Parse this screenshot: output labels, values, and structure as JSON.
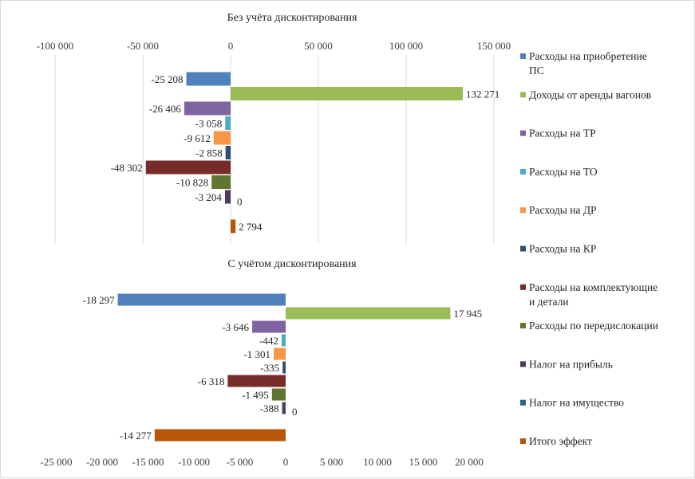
{
  "chart_data": [
    {
      "type": "bar",
      "orientation": "horizontal",
      "title": "Без учёта дисконтирования",
      "xlim": [
        -100000,
        150000
      ],
      "xticks": [
        -100000,
        -50000,
        0,
        50000,
        100000,
        150000
      ],
      "xtick_labels": [
        "-100 000",
        "-50 000",
        "0",
        "50 000",
        "100 000",
        "150 000"
      ],
      "axis_position": "top",
      "grid": true,
      "categories": [
        "Расходы на приобретение ПС",
        "Доходы от аренды вагонов",
        "Расходы на ТР",
        "Расходы на ТО",
        "Расходы на ДР",
        "Расходы на КР",
        "Расходы на комплектующие и детали",
        "Расходы по передислокации",
        "Налог на прибыль",
        "Налог на имущество",
        "Итого эффект"
      ],
      "values": [
        -25208,
        132271,
        -26406,
        -3058,
        -9612,
        -2858,
        -48302,
        -10828,
        -3204,
        0,
        2794
      ],
      "value_labels": [
        "-25 208",
        "132 271",
        "-26 406",
        "-3 058",
        "-9 612",
        "-2 858",
        "-48 302",
        "-10 828",
        "-3 204",
        "0",
        "2 794"
      ]
    },
    {
      "type": "bar",
      "orientation": "horizontal",
      "title": "С учётом дисконтирования",
      "xlim": [
        -25000,
        20000
      ],
      "xticks": [
        -25000,
        -20000,
        -15000,
        -10000,
        -5000,
        0,
        5000,
        10000,
        15000,
        20000
      ],
      "xtick_labels": [
        "-25 000",
        "-20 000",
        "-15 000",
        "-10 000",
        "-5 000",
        "0",
        "5 000",
        "10 000",
        "15 000",
        "20 000"
      ],
      "axis_position": "bottom",
      "grid": false,
      "categories": [
        "Расходы на приобретение ПС",
        "Доходы от аренды вагонов",
        "Расходы на ТР",
        "Расходы на ТО",
        "Расходы на ДР",
        "Расходы на КР",
        "Расходы на комплектующие и детали",
        "Расходы по передислокации",
        "Налог на прибыль",
        "Налог на имущество",
        "Итого эффект"
      ],
      "values": [
        -18297,
        17945,
        -3646,
        -442,
        -1301,
        -335,
        -6318,
        -1495,
        -388,
        0,
        -14277
      ],
      "value_labels": [
        "-18 297",
        "17 945",
        "-3 646",
        "-442",
        "-1 301",
        "-335",
        "-6 318",
        "-1 495",
        "-388",
        "0",
        "-14 277"
      ]
    }
  ],
  "legend": {
    "placement": "right",
    "entries": [
      {
        "label_lines": [
          "Расходы на приобретение",
          "ПС"
        ],
        "color": "#4f81bd"
      },
      {
        "label_lines": [
          "Доходы от аренды вагонов"
        ],
        "color": "#9bbb59"
      },
      {
        "label_lines": [
          "Расходы на ТР"
        ],
        "color": "#8064a2"
      },
      {
        "label_lines": [
          "Расходы на ТО"
        ],
        "color": "#4bacc6"
      },
      {
        "label_lines": [
          "Расходы на ДР"
        ],
        "color": "#f79646"
      },
      {
        "label_lines": [
          "Расходы на КР"
        ],
        "color": "#2c4d75"
      },
      {
        "label_lines": [
          "Расходы на комплектующие",
          "и детали"
        ],
        "color": "#772c2a"
      },
      {
        "label_lines": [
          "Расходы по передислокации"
        ],
        "color": "#5f7530"
      },
      {
        "label_lines": [
          "Налог на прибыль"
        ],
        "color": "#4d3b62"
      },
      {
        "label_lines": [
          "Налог на имущество"
        ],
        "color": "#276a7c"
      },
      {
        "label_lines": [
          "Итого эффект"
        ],
        "color": "#b65708"
      }
    ]
  }
}
